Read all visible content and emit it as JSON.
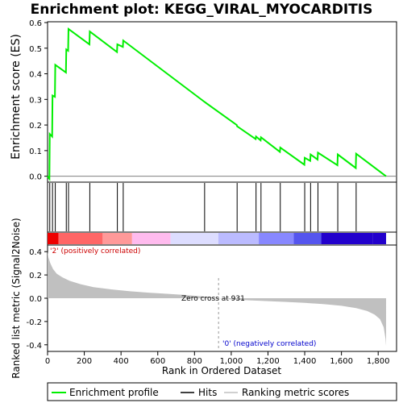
{
  "chart_data": {
    "type": "line",
    "title": "Enrichment plot: KEGG_VIRAL_MYOCARDITIS",
    "top_panel": {
      "ylabel": "Enrichment score (ES)",
      "ylim": [
        -0.02,
        0.6
      ],
      "yticks": [
        0.0,
        0.1,
        0.2,
        0.3,
        0.4,
        0.5,
        0.6
      ],
      "ytick_labels": [
        "0.0",
        "0.1",
        "0.2",
        "0.3",
        "0.4",
        "0.5",
        "0.6"
      ],
      "grid": false,
      "series": [
        {
          "name": "Enrichment profile",
          "color": "#00ee00",
          "x": [
            0,
            10,
            12,
            25,
            27,
            40,
            42,
            100,
            102,
            112,
            114,
            228,
            230,
            378,
            380,
            410,
            412,
            855,
            1030,
            1032,
            1133,
            1135,
            1160,
            1162,
            1265,
            1267,
            1398,
            1400,
            1430,
            1432,
            1470,
            1472,
            1578,
            1580,
            1678,
            1680,
            1843
          ],
          "y": [
            0.0,
            -0.01,
            0.165,
            0.155,
            0.315,
            0.31,
            0.435,
            0.405,
            0.495,
            0.49,
            0.575,
            0.515,
            0.565,
            0.485,
            0.515,
            0.505,
            0.53,
            0.29,
            0.2,
            0.195,
            0.145,
            0.155,
            0.14,
            0.152,
            0.095,
            0.112,
            0.045,
            0.072,
            0.06,
            0.085,
            0.065,
            0.092,
            0.043,
            0.085,
            0.032,
            0.088,
            0.0
          ]
        }
      ]
    },
    "hits": {
      "positions": [
        12,
        27,
        42,
        102,
        114,
        230,
        380,
        412,
        855,
        1032,
        1135,
        1162,
        1267,
        1400,
        1432,
        1472,
        1580,
        1680
      ]
    },
    "ranking_bar": {
      "label_pos": "'2' (positively correlated)",
      "label_neg": "'0' (negatively correlated)",
      "colors": [
        "#ee0000",
        "#ff6666",
        "#ff9999",
        "#ffbbee",
        "#ddddff",
        "#bbbbff",
        "#8888ff",
        "#5555ee",
        "#2200cc"
      ],
      "bands": [
        0,
        60,
        300,
        460,
        670,
        930,
        1150,
        1340,
        1490,
        1770,
        1843
      ]
    },
    "bottom_panel": {
      "ylabel": "Ranked list metric (Signal2Noise)",
      "ylim": [
        -0.45,
        0.45
      ],
      "yticks": [
        -0.4,
        -0.2,
        0.0,
        0.2,
        0.4
      ],
      "ytick_labels": [
        "-0.4",
        "-0.2",
        "0.0",
        "0.2",
        "0.4"
      ],
      "zero_cross_text": "Zero cross at 931",
      "zero_cross": 931,
      "fill_color": "#c0c0c0",
      "metric_x": [
        0,
        5,
        15,
        30,
        50,
        80,
        120,
        180,
        250,
        350,
        450,
        550,
        650,
        750,
        850,
        931,
        1000,
        1100,
        1200,
        1300,
        1400,
        1500,
        1600,
        1680,
        1740,
        1780,
        1810,
        1830,
        1840,
        1843
      ],
      "metric_y": [
        0.4,
        0.35,
        0.3,
        0.25,
        0.21,
        0.18,
        0.15,
        0.12,
        0.095,
        0.075,
        0.06,
        0.048,
        0.038,
        0.028,
        0.015,
        0.0,
        -0.01,
        -0.018,
        -0.025,
        -0.032,
        -0.04,
        -0.05,
        -0.065,
        -0.085,
        -0.11,
        -0.14,
        -0.18,
        -0.25,
        -0.35,
        -0.41
      ]
    },
    "xlabel": "Rank in Ordered Dataset",
    "xlim": [
      0,
      1900
    ],
    "xticks": [
      0,
      200,
      400,
      600,
      800,
      1000,
      1200,
      1400,
      1600,
      1800
    ],
    "xtick_labels": [
      "0",
      "200",
      "400",
      "600",
      "800",
      "1,000",
      "1,200",
      "1,400",
      "1,600",
      "1,800"
    ],
    "legend": {
      "placement": "bottom",
      "entries": [
        {
          "label": "Enrichment profile",
          "color": "#00ee00"
        },
        {
          "label": "Hits",
          "color": "#000000"
        },
        {
          "label": "Ranking metric scores",
          "color": "#c0c0c0"
        }
      ]
    }
  }
}
